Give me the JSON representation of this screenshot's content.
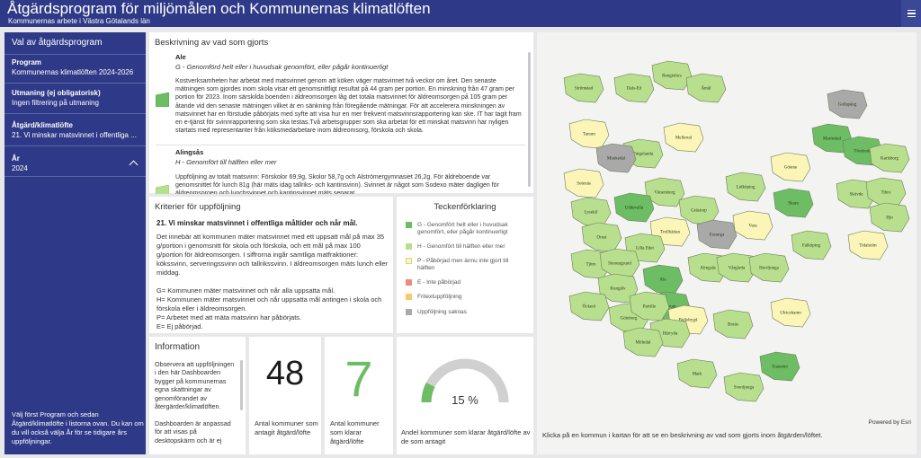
{
  "header": {
    "title": "Åtgärdsprogram för miljömålen och Kommunernas klimatlöften",
    "subtitle": "Kommunernas arbete i Västra Götalands län",
    "menu_icon": "hamburger-menu-icon"
  },
  "sidebar": {
    "title": "Val av åtgärdsprogram",
    "items": [
      {
        "label": "Program",
        "value": "Kommunernas klimatlöften 2024-2026"
      },
      {
        "label": "Utmaning (ej obligatorisk)",
        "value": "Ingen filtrering på utmaning"
      },
      {
        "label": "Åtgärd/klimatlöfte",
        "value": "21. Vi minskar matsvinnet i offentliga ..."
      },
      {
        "label": "År",
        "value": "2024"
      }
    ],
    "footer": "Välj först Program och sedan Åtgärd/klimatlöfte i listorna ovan. Du kan om du vill också välja År för se tidigare års uppföljningar."
  },
  "description": {
    "title": "Beskrivning av vad som gjorts",
    "entries": [
      {
        "name": "Ale",
        "category": "G - Genomförd helt eller i huvudsak genomfört, eller pågår kontinuerligt",
        "color": "#6cbd64",
        "text": "Kostverksamheten har arbetat med matsvinnet genom att köken väger matsvinnet två veckor om året. Den senaste mätningen som gjordes inom skola visar ett genomsnittligt resultat på 44 gram per portion. En minskning från 47 gram per portion för 2023. Inom särskilda boenden i äldreomsorgen låg det totala matsvinnet för äldreomsorgen på 105 gram per åtande vid den senaste mätningen vilket är en sänkning från föregående mätningar. För att accelerera minskningen av matsvinnet har en förstudie påbörjats med syfte att visa hur en mer frekvent matsvinnsrapportering kan ske. IT har tagit fram en e-tjänst för svinnrapportering som ska testas.Två arbetsgrupper som ska arbetat för ett minskat matsvinn har nyligen startats med representanter från köksmedarbetare inom äldreomsorg, förskola och skola."
      },
      {
        "name": "Alingsås",
        "category": "H - Genomfört till hälften eller mer",
        "color": "#b8df8e",
        "text": "Uppföljning av totalt matsvinn: Förskolor 69,9g, Skolor 58,7g och Alströmergymnasiet 26,2g. För äldreboende var genomsnittet för lunch 81g (här mäts idag tallriks- och kantinsvinn). Svinnet är något som Sodexo mäter dagligen för äldreomsorgen och lunchsvinnet och kantinsvinnet mäts separat."
      }
    ]
  },
  "criteria": {
    "title": "Kriterier för uppföljning",
    "heading": "21. Vi minskar matsvinnet i offentliga måltider och når mål.",
    "text": "Det innebär att kommunen mäter matsvinnet med ett uppsatt mål på max 35 g/portion i genomsnitt för skola och förskola, och ett mål på max 100 g/portion för äldreomsorgen. I siffrorna ingår samtliga matfraktioner: kökssvinn, serveringssvinn och tallrikssvinn. I äldreomsorgen mäts lunch eller middag.\n\nG= Kommunen mäter matsvinnet och når alla uppsatta mål.\nH= Kommunen mäter matsvinnet och når uppsatta mål antingen i skola och förskola eller i äldreomsorgen.\nP= Arbetet med att mäta matsvinn har påbörjats.\nE= Ej påbörjad."
  },
  "legend": {
    "title": "Teckenförklaring",
    "items": [
      {
        "label": "G - Genomfört helt eller i huvudsak genomfört, eller pågår kontinuerligt",
        "color": "#6cbd64"
      },
      {
        "label": "H - Genomfört till hälften eller mer",
        "color": "#b8df8e"
      },
      {
        "label": "P - Påbörjad men ännu inte gjort till hälften",
        "color": "#fbf6b8"
      },
      {
        "label": "E - Inte påbörjad",
        "color": "#f08a7e"
      },
      {
        "label": "Fritextuppföljning",
        "color": "#f7c96b"
      },
      {
        "label": "Uppföljning saknas",
        "color": "#a9a9a9"
      }
    ]
  },
  "info": {
    "title": "Information",
    "text": "Observera att uppföljningen i den här Dashboarden bygger på kommunernas egna skattningar av genomförandet av återgärder/klimatlöften.\n\nDashboarden är anpassad för att visas på desktopskärm och är ej"
  },
  "kpis": [
    {
      "value": "48",
      "label": "Antal kommuner som antagit åtgärd/löfte",
      "color": "#1a1a1a"
    },
    {
      "value": "7",
      "label": "Antal kommuner som klarar åtgärd/löfte",
      "color": "#6cbd64"
    }
  ],
  "gauge": {
    "value": 15,
    "max": 100,
    "value_text": "15 %",
    "label": "Andel kommuner som klarar åtgärd/löfte av de som antagit",
    "fill_color": "#6cbd64",
    "track_color": "#d0d0d0"
  },
  "map": {
    "caption": "Klicka på en kommun i kartan för att se en beskrivning av vad som gjorts inom åtgärden/löftet.",
    "credit": "Powered by Esri",
    "municipalities": [
      {
        "name": "Strömstad",
        "status": "H"
      },
      {
        "name": "Dals-Ed",
        "status": "H"
      },
      {
        "name": "Bengtsfors",
        "status": "H"
      },
      {
        "name": "Åmål",
        "status": "H"
      },
      {
        "name": "Tanum",
        "status": "P"
      },
      {
        "name": "Färgelanda",
        "status": "H"
      },
      {
        "name": "Mellerud",
        "status": "P"
      },
      {
        "name": "Munkedal",
        "status": "missing"
      },
      {
        "name": "Gullspång",
        "status": "missing"
      },
      {
        "name": "Mariestad",
        "status": "G"
      },
      {
        "name": "Töreboda",
        "status": "G"
      },
      {
        "name": "Karlsborg",
        "status": "H"
      },
      {
        "name": "Götene",
        "status": "P"
      },
      {
        "name": "Sotenäs",
        "status": "P"
      },
      {
        "name": "Vänersborg",
        "status": "H"
      },
      {
        "name": "Lidköping",
        "status": "H"
      },
      {
        "name": "Skara",
        "status": "G"
      },
      {
        "name": "Skövde",
        "status": "H"
      },
      {
        "name": "Tibro",
        "status": "H"
      },
      {
        "name": "Hjo",
        "status": "H"
      },
      {
        "name": "Uddevalla",
        "status": "G"
      },
      {
        "name": "Grästorp",
        "status": "H"
      },
      {
        "name": "Essunga",
        "status": "missing"
      },
      {
        "name": "Vara",
        "status": "P"
      },
      {
        "name": "Lysekil",
        "status": "H"
      },
      {
        "name": "Orust",
        "status": "H"
      },
      {
        "name": "Trollhättan",
        "status": "P"
      },
      {
        "name": "Falköping",
        "status": "H"
      },
      {
        "name": "Tidaholm",
        "status": "P"
      },
      {
        "name": "Lilla Edet",
        "status": "H"
      },
      {
        "name": "Tjörn",
        "status": "H"
      },
      {
        "name": "Stenungsund",
        "status": "H"
      },
      {
        "name": "Alingsås",
        "status": "H"
      },
      {
        "name": "Vårgårda",
        "status": "H"
      },
      {
        "name": "Herrljunga",
        "status": "H"
      },
      {
        "name": "Kungälv",
        "status": "H"
      },
      {
        "name": "Ale",
        "status": "G"
      },
      {
        "name": "Lerum",
        "status": "G"
      },
      {
        "name": "Ulricehamn",
        "status": "P"
      },
      {
        "name": "Borås",
        "status": "H"
      },
      {
        "name": "Öckerö",
        "status": "H"
      },
      {
        "name": "Göteborg",
        "status": "H"
      },
      {
        "name": "Partille",
        "status": "H"
      },
      {
        "name": "Bollebygd",
        "status": "P"
      },
      {
        "name": "Härryda",
        "status": "H"
      },
      {
        "name": "Mölndal",
        "status": "H"
      },
      {
        "name": "Mark",
        "status": "H"
      },
      {
        "name": "Svenljunga",
        "status": "H"
      },
      {
        "name": "Tranemo",
        "status": "G"
      }
    ],
    "status_colors": {
      "G": "#6cbd64",
      "H": "#b8df8e",
      "P": "#fbf6b8",
      "missing": "#a9a9a9"
    }
  }
}
